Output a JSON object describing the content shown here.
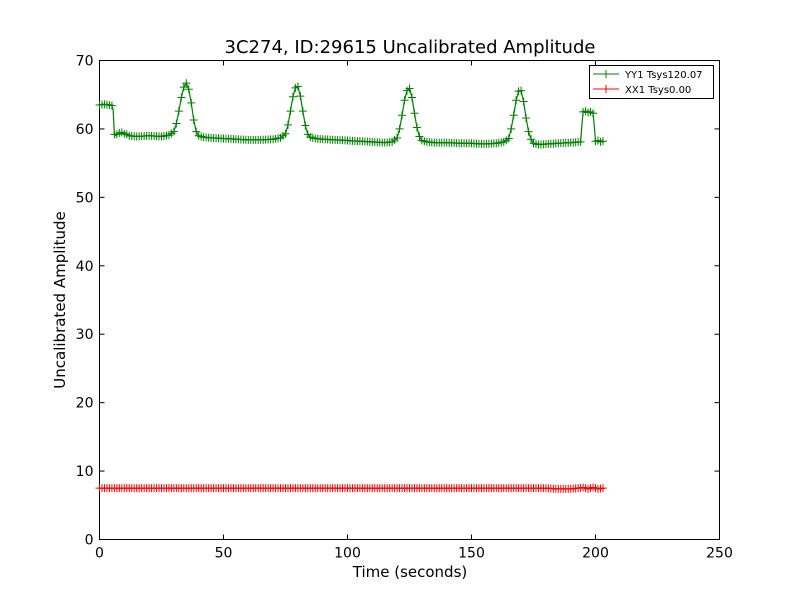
{
  "chart_data": {
    "type": "line",
    "title": "3C274, ID:29615 Uncalibrated Amplitude",
    "xlabel": "Time (seconds)",
    "ylabel": "Uncalibrated Amplitude",
    "xlim": [
      0,
      250
    ],
    "ylim": [
      0,
      70
    ],
    "xticks": [
      0,
      50,
      100,
      150,
      200,
      250
    ],
    "yticks": [
      0,
      10,
      20,
      30,
      40,
      50,
      60,
      70
    ],
    "grid": false,
    "legend_position": "top-right",
    "marker": "+",
    "series": [
      {
        "name": "YY1 Tsys120.07",
        "color": "#008000",
        "x": [
          0,
          2,
          4,
          5,
          5.5,
          6,
          6.5,
          7,
          8,
          9,
          10,
          11,
          12,
          15,
          20,
          25,
          28,
          30,
          31,
          32,
          33,
          34,
          35,
          36,
          37,
          38,
          39,
          40,
          42,
          45,
          50,
          55,
          60,
          65,
          70,
          73,
          75,
          76,
          77,
          78,
          79,
          80,
          81,
          82,
          83,
          84,
          85,
          87,
          90,
          95,
          100,
          105,
          110,
          115,
          118,
          120,
          121,
          122,
          123,
          124,
          125,
          126,
          127,
          128,
          129,
          130,
          132,
          135,
          140,
          145,
          150,
          155,
          160,
          163,
          165,
          166,
          167,
          168,
          169,
          170,
          171,
          172,
          173,
          174,
          175,
          177,
          180,
          185,
          190,
          194,
          194.5,
          195,
          196,
          197,
          198,
          199,
          199.5,
          200,
          201,
          202,
          203
        ],
        "y": [
          63.5,
          63.6,
          63.5,
          63.4,
          62.8,
          59.2,
          59.0,
          59.2,
          59.4,
          59.5,
          59.3,
          59.2,
          59.0,
          58.9,
          59.0,
          58.9,
          59.1,
          59.6,
          60.8,
          62.6,
          64.6,
          66.1,
          66.7,
          65.8,
          63.8,
          61.3,
          59.6,
          59.0,
          58.8,
          58.7,
          58.6,
          58.5,
          58.4,
          58.4,
          58.5,
          58.7,
          59.3,
          60.6,
          62.6,
          64.7,
          66.0,
          66.2,
          64.8,
          62.6,
          60.5,
          59.2,
          58.8,
          58.6,
          58.5,
          58.4,
          58.3,
          58.2,
          58.1,
          58.0,
          58.1,
          58.7,
          60.0,
          62.0,
          64.2,
          65.6,
          65.9,
          64.6,
          62.3,
          60.2,
          58.9,
          58.3,
          58.1,
          58.0,
          58.0,
          57.9,
          57.9,
          57.8,
          57.9,
          58.1,
          58.6,
          60.0,
          62.0,
          64.2,
          65.5,
          65.6,
          64.0,
          61.6,
          59.6,
          58.5,
          57.9,
          57.7,
          57.8,
          57.9,
          58.0,
          58.1,
          60.5,
          62.5,
          62.6,
          62.4,
          62.5,
          62.3,
          60.5,
          58.2,
          58.3,
          58.1,
          58.2
        ]
      },
      {
        "name": "XX1 Tsys0.00",
        "color": "#ff0000",
        "x": [
          0,
          10,
          20,
          30,
          40,
          50,
          60,
          70,
          80,
          90,
          100,
          110,
          120,
          130,
          140,
          150,
          160,
          170,
          180,
          185,
          190,
          193,
          195,
          197,
          199,
          201,
          203
        ],
        "y": [
          7.5,
          7.5,
          7.5,
          7.5,
          7.5,
          7.5,
          7.5,
          7.5,
          7.5,
          7.5,
          7.5,
          7.5,
          7.5,
          7.5,
          7.5,
          7.5,
          7.5,
          7.5,
          7.5,
          7.4,
          7.4,
          7.5,
          7.6,
          7.4,
          7.6,
          7.4,
          7.5
        ]
      }
    ]
  }
}
